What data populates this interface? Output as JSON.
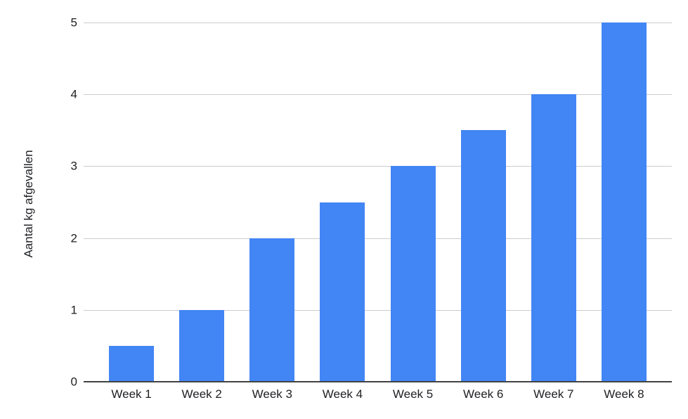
{
  "chart_data": {
    "type": "bar",
    "title": "",
    "categories": [
      "Week 1",
      "Week 2",
      "Week 3",
      "Week 4",
      "Week 5",
      "Week 6",
      "Week 7",
      "Week 8"
    ],
    "values": [
      0.5,
      1,
      2,
      2.5,
      3,
      3.5,
      4,
      5
    ],
    "xlabel": "",
    "ylabel": "Aantal kg afgevallen",
    "ylim": [
      0,
      5
    ],
    "yticks": [
      0,
      1,
      2,
      3,
      4,
      5
    ],
    "grid": "horizontal",
    "legend": "none",
    "bar_color": "#4285f4",
    "gridline_color": "#cccccc",
    "axis_line_color": "#424242",
    "label_color": "#202124",
    "background_color": "#ffffff"
  }
}
